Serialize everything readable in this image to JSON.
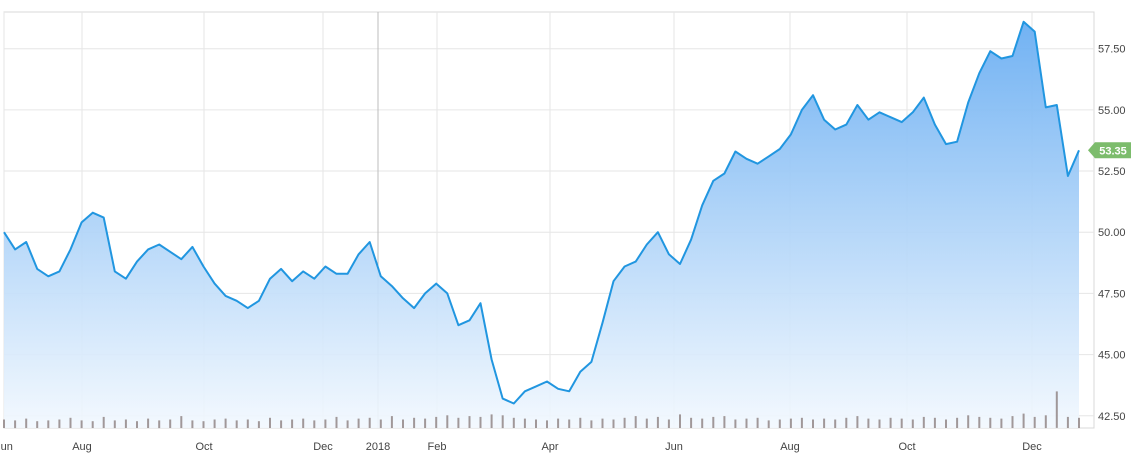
{
  "chart_data": {
    "type": "area",
    "title": "",
    "xlabel": "",
    "ylabel": "",
    "ylim": [
      42.0,
      59.0
    ],
    "y_axis_position": "right",
    "grid": true,
    "colors": {
      "line": "#2196e0",
      "fill_top": "#6aaef2",
      "fill_bottom": "#f2f8fe",
      "volume_bar": "#8c7f7f",
      "last_price_tag": "#7cbc6c",
      "grid": "#e6e6e6"
    },
    "x_ticks": [
      "Jun",
      "Aug",
      "Oct",
      "Dec",
      "2018",
      "Feb",
      "Apr",
      "Jun",
      "Aug",
      "Oct",
      "Dec"
    ],
    "y_ticks": [
      "42.50",
      "45.00",
      "47.50",
      "50.00",
      "52.50",
      "55.00",
      "57.50"
    ],
    "last_price": 53.35,
    "last_price_label": "53.35",
    "series": [
      {
        "x_start": "2017-06-01",
        "x_end": "2018-12-12",
        "values": [
          50.0,
          49.3,
          49.6,
          48.5,
          48.2,
          48.4,
          49.3,
          50.4,
          50.8,
          50.6,
          48.4,
          48.1,
          48.8,
          49.3,
          49.5,
          49.2,
          48.9,
          49.4,
          48.6,
          47.9,
          47.4,
          47.2,
          46.9,
          47.2,
          48.1,
          48.5,
          48.0,
          48.4,
          48.1,
          48.6,
          48.3,
          48.3,
          49.1,
          49.6,
          48.2,
          47.8,
          47.3,
          46.9,
          47.5,
          47.9,
          47.5,
          46.2,
          46.4,
          47.1,
          44.8,
          43.2,
          43.0,
          43.5,
          43.7,
          43.9,
          43.6,
          43.5,
          44.3,
          44.7,
          46.3,
          48.0,
          48.6,
          48.8,
          49.5,
          50.0,
          49.1,
          48.7,
          49.7,
          51.1,
          52.1,
          52.4,
          53.3,
          53.0,
          52.8,
          53.1,
          53.4,
          54.0,
          55.0,
          55.6,
          54.6,
          54.2,
          54.4,
          55.2,
          54.6,
          54.9,
          54.7,
          54.5,
          54.9,
          55.5,
          54.4,
          53.6,
          53.7,
          55.3,
          56.5,
          57.4,
          57.1,
          57.2,
          58.6,
          58.2,
          55.1,
          55.2,
          52.3,
          53.35
        ],
        "volume_values": [
          1.0,
          0.9,
          1.1,
          0.8,
          0.9,
          1.0,
          1.2,
          0.9,
          0.8,
          1.3,
          0.9,
          1.0,
          0.8,
          1.1,
          0.9,
          1.0,
          1.4,
          0.9,
          0.8,
          1.0,
          1.1,
          0.9,
          1.0,
          0.8,
          1.2,
          0.9,
          1.0,
          1.1,
          0.9,
          1.0,
          1.3,
          0.9,
          1.1,
          1.2,
          1.0,
          1.4,
          1.0,
          1.2,
          1.1,
          1.3,
          1.5,
          1.2,
          1.4,
          1.3,
          1.6,
          1.5,
          1.2,
          1.1,
          1.0,
          0.9,
          1.1,
          1.0,
          1.2,
          0.9,
          1.1,
          1.0,
          1.2,
          1.4,
          1.1,
          1.3,
          1.0,
          1.6,
          1.2,
          1.1,
          1.3,
          1.4,
          1.0,
          1.1,
          1.2,
          0.9,
          1.0,
          1.1,
          1.2,
          1.0,
          1.1,
          1.0,
          1.2,
          1.4,
          1.1,
          1.0,
          1.2,
          1.1,
          1.0,
          1.3,
          1.2,
          1.0,
          1.2,
          1.5,
          1.3,
          1.2,
          1.1,
          1.4,
          1.7,
          1.3,
          1.5,
          4.3,
          1.3,
          1.2
        ]
      }
    ]
  }
}
